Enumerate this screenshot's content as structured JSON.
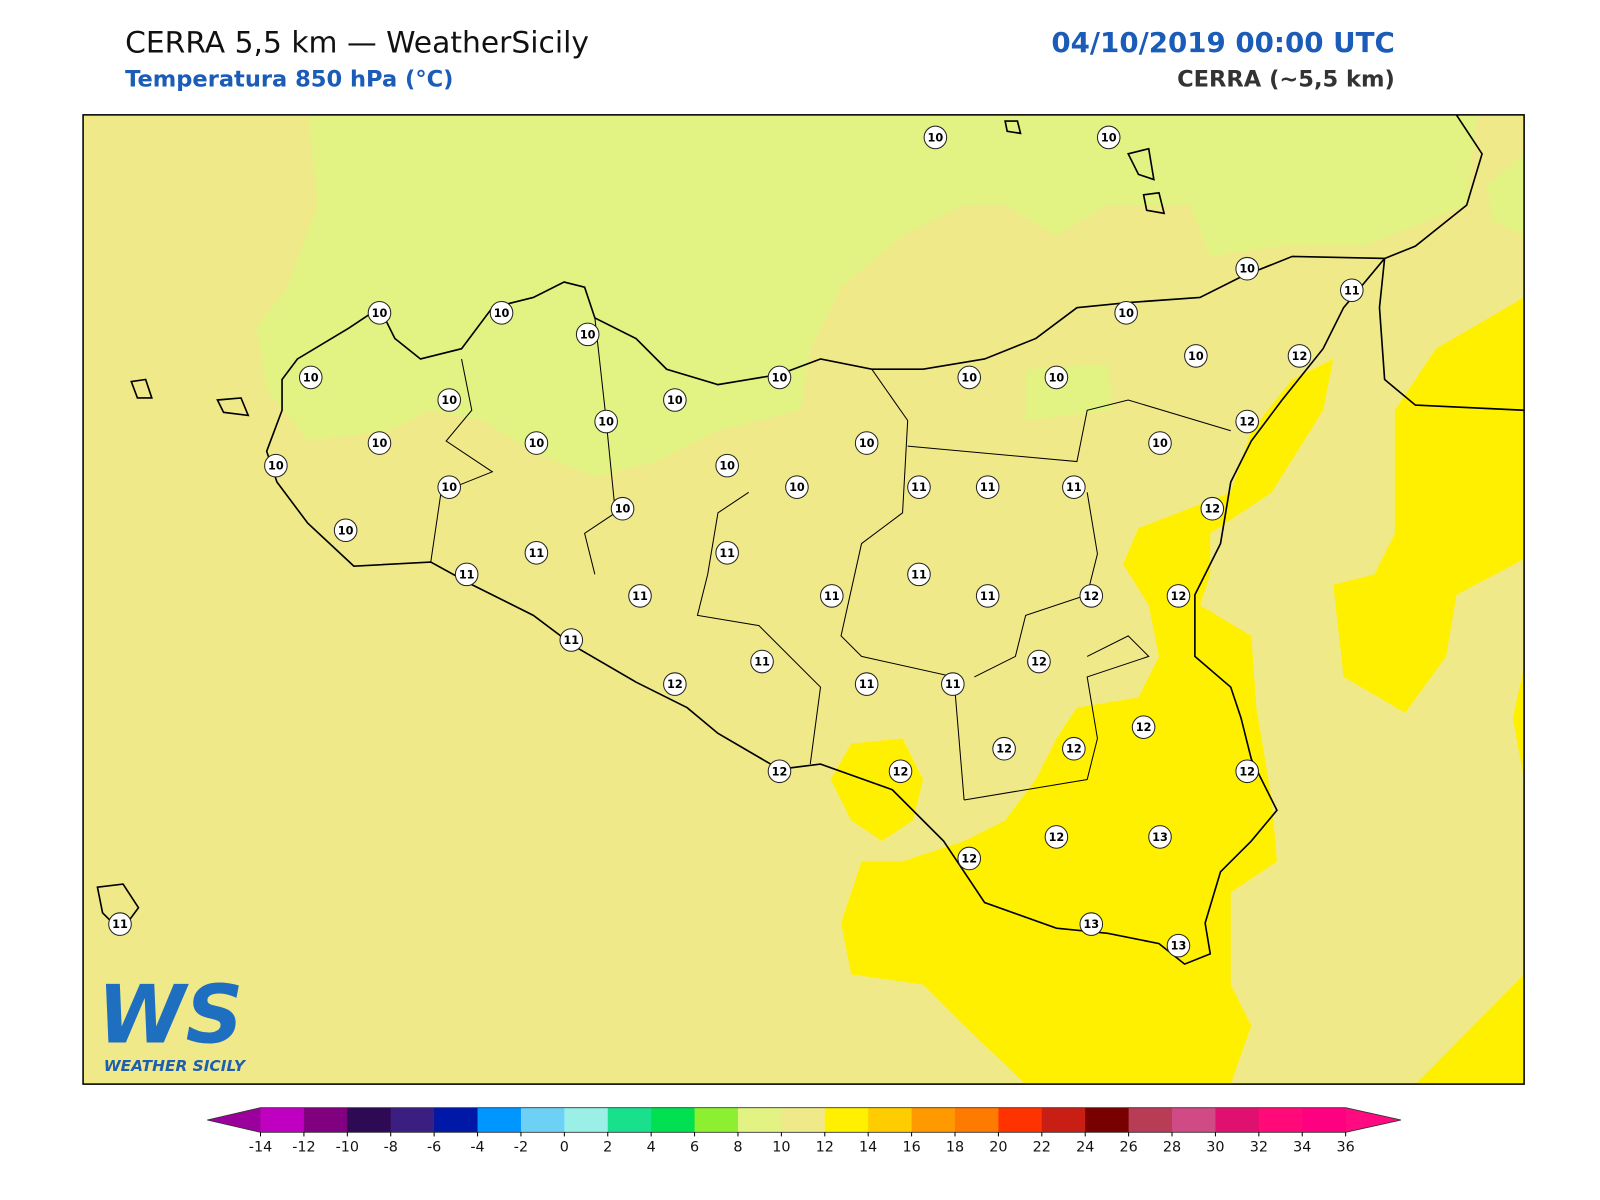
{
  "header": {
    "title": "CERRA 5,5 km — WeatherSicily",
    "subtitle": "Temperatura 850 hPa (°C)",
    "date": "04/10/2019 00:00 UTC",
    "model": "CERRA (~5,5 km)"
  },
  "stations": {
    "values": [
      10,
      10,
      10,
      11,
      10,
      10,
      10,
      10,
      10,
      10,
      10,
      10,
      10,
      10,
      10,
      12,
      10,
      10,
      10,
      10,
      10,
      12,
      10,
      10,
      10,
      10,
      11,
      11,
      11,
      10,
      12,
      10,
      11,
      11,
      11,
      11,
      11,
      11,
      11,
      12,
      12,
      11,
      12,
      11,
      12,
      11,
      11,
      12,
      12,
      12,
      12,
      12,
      12,
      12,
      13,
      12,
      13,
      13,
      11
    ]
  },
  "colorbar": {
    "ticks": [
      -14,
      -12,
      -10,
      -8,
      -6,
      -4,
      -2,
      0,
      2,
      4,
      6,
      8,
      10,
      12,
      14,
      16,
      18,
      20,
      22,
      24,
      26,
      28,
      30,
      32,
      34,
      36
    ],
    "colors": [
      "#c000c0",
      "#800080",
      "#2e0a55",
      "#3b1f80",
      "#0018a8",
      "#0096ff",
      "#6dd0f5",
      "#9af0e6",
      "#19e08c",
      "#00e050",
      "#8cf030",
      "#e2f283",
      "#f0e98a",
      "#fff000",
      "#ffcc00",
      "#ff9900",
      "#ff7a00",
      "#ff3300",
      "#c81e14",
      "#780000",
      "#b83c55",
      "#d04a85",
      "#e01070",
      "#ff0a78",
      "#ff0080"
    ],
    "under": "#9c009c",
    "over": "#ff0a80"
  },
  "logo": {
    "mark": "WS",
    "text": "WEATHER SICILY"
  }
}
